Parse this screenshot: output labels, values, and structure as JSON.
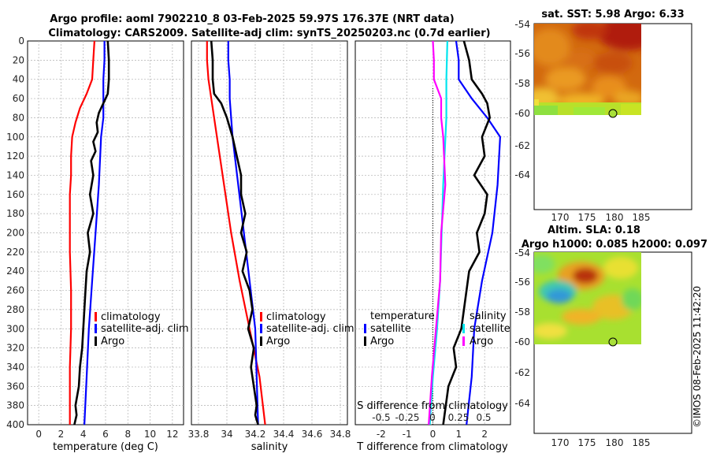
{
  "header": {
    "title_line1": "Argo profile: aoml 7902210_8 03-Feb-2025 59.97S 176.37E (NRT data)",
    "title_line2": "Climatology: CARS2009. Satellite-adj clim: synTS_20250203.nc (0.7d earlier)"
  },
  "depth_axis": {
    "min": 0,
    "max": 400,
    "ticks": [
      "0",
      "20",
      "40",
      "60",
      "80",
      "100",
      "120",
      "140",
      "160",
      "180",
      "200",
      "220",
      "240",
      "260",
      "280",
      "300",
      "320",
      "340",
      "360",
      "380",
      "400"
    ]
  },
  "colors": {
    "climatology": "#ff0000",
    "satellite": "#0000ff",
    "argo": "#000000",
    "temp_diff": "#00e5ee",
    "sal_diff": "#ff00ff",
    "grid": "#b0b0b0"
  },
  "chart_data": [
    {
      "type": "line",
      "id": "temperature",
      "xlabel": "temperature (deg C)",
      "xlim": [
        -1,
        13
      ],
      "xticks": [
        "0",
        "2",
        "4",
        "6",
        "8",
        "10",
        "12"
      ],
      "ylim": [
        400,
        0
      ],
      "legend": [
        "climatology",
        "satellite-adj. clim",
        "Argo"
      ],
      "series": [
        {
          "name": "climatology",
          "depth": [
            0,
            20,
            40,
            55,
            70,
            85,
            100,
            120,
            140,
            160,
            190,
            220,
            260,
            300,
            340,
            380,
            400
          ],
          "values": [
            5.0,
            4.9,
            4.8,
            4.3,
            3.7,
            3.3,
            3.0,
            2.9,
            2.9,
            2.8,
            2.8,
            2.8,
            2.9,
            2.9,
            2.8,
            2.8,
            2.8
          ]
        },
        {
          "name": "satellite-adj. clim",
          "depth": [
            0,
            20,
            40,
            60,
            80,
            100,
            150,
            200,
            250,
            300,
            350,
            400
          ],
          "values": [
            5.9,
            5.9,
            5.8,
            5.8,
            5.8,
            5.6,
            5.4,
            5.1,
            4.8,
            4.5,
            4.3,
            4.1
          ]
        },
        {
          "name": "Argo",
          "depth": [
            0,
            20,
            40,
            55,
            65,
            75,
            85,
            95,
            105,
            115,
            125,
            140,
            160,
            180,
            200,
            220,
            240,
            260,
            280,
            300,
            320,
            340,
            360,
            380,
            390,
            400
          ],
          "values": [
            6.2,
            6.3,
            6.3,
            6.2,
            5.8,
            5.4,
            5.2,
            5.3,
            4.9,
            5.1,
            4.7,
            4.9,
            4.6,
            4.9,
            4.4,
            4.6,
            4.3,
            4.2,
            4.1,
            4.0,
            3.9,
            3.7,
            3.6,
            3.3,
            3.4,
            3.2
          ]
        }
      ]
    },
    {
      "type": "line",
      "id": "salinity",
      "xlabel": "salinity",
      "xlim": [
        33.75,
        34.85
      ],
      "xticks": [
        "33.8",
        "34",
        "34.2",
        "34.4",
        "34.6",
        "34.8"
      ],
      "ylim": [
        400,
        0
      ],
      "legend": [
        "climatology",
        "satellite-adj. clim",
        "Argo"
      ],
      "series": [
        {
          "name": "climatology",
          "depth": [
            0,
            20,
            40,
            50,
            60,
            80,
            100,
            150,
            200,
            250,
            300,
            350,
            400
          ],
          "values": [
            33.86,
            33.86,
            33.87,
            33.88,
            33.89,
            33.91,
            33.93,
            33.98,
            34.03,
            34.09,
            34.16,
            34.23,
            34.27
          ]
        },
        {
          "name": "satellite-adj. clim",
          "depth": [
            0,
            20,
            40,
            60,
            80,
            100,
            150,
            200,
            250,
            300,
            350,
            400
          ],
          "values": [
            34.01,
            34.01,
            34.02,
            34.02,
            34.03,
            34.04,
            34.08,
            34.12,
            34.16,
            34.2,
            34.21,
            34.22
          ]
        },
        {
          "name": "Argo",
          "depth": [
            0,
            20,
            40,
            55,
            65,
            80,
            100,
            120,
            140,
            160,
            180,
            200,
            220,
            240,
            260,
            280,
            300,
            320,
            340,
            360,
            380,
            390,
            400
          ],
          "values": [
            33.89,
            33.9,
            33.9,
            33.91,
            33.96,
            34.0,
            34.04,
            34.07,
            34.1,
            34.1,
            34.13,
            34.1,
            34.14,
            34.11,
            34.16,
            34.18,
            34.15,
            34.19,
            34.17,
            34.19,
            34.21,
            34.2,
            34.22
          ]
        }
      ]
    },
    {
      "type": "line",
      "id": "difference",
      "xlabel": "T difference from climatology",
      "xlim": [
        -3,
        3
      ],
      "xticks": [
        "-2",
        "-1",
        "0",
        "1",
        "2"
      ],
      "secondary_label": "S difference from climatology",
      "secondary_ticks": [
        "-0.5",
        "-0.25",
        "0",
        "0.25",
        "0.5"
      ],
      "ylim": [
        400,
        0
      ],
      "legend_temperature": [
        "temperature",
        "satellite",
        "Argo"
      ],
      "legend_salinity": [
        "salinity",
        "satellite",
        "Argo"
      ],
      "series": [
        {
          "name": "T satellite",
          "depth": [
            0,
            20,
            40,
            60,
            80,
            100,
            150,
            200,
            250,
            300,
            350,
            400
          ],
          "values": [
            0.9,
            1.0,
            1.0,
            1.5,
            2.1,
            2.6,
            2.5,
            2.3,
            1.9,
            1.6,
            1.5,
            1.3
          ]
        },
        {
          "name": "T Argo",
          "depth": [
            0,
            20,
            40,
            55,
            65,
            80,
            100,
            120,
            140,
            160,
            180,
            200,
            220,
            240,
            260,
            280,
            300,
            320,
            340,
            360,
            380,
            400
          ],
          "values": [
            1.2,
            1.4,
            1.5,
            1.9,
            2.1,
            2.2,
            1.9,
            2.0,
            1.6,
            2.1,
            2.0,
            1.7,
            1.8,
            1.4,
            1.3,
            1.2,
            1.1,
            0.8,
            0.9,
            0.6,
            0.5,
            0.4
          ]
        },
        {
          "name": "S satellite",
          "depth": [
            0,
            40,
            80,
            150,
            250,
            300,
            350,
            400
          ],
          "values": [
            0.14,
            0.13,
            0.13,
            0.1,
            0.07,
            0.04,
            0.0,
            -0.03
          ]
        },
        {
          "name": "S Argo",
          "depth": [
            0,
            20,
            40,
            60,
            80,
            100,
            150,
            200,
            250,
            300,
            350,
            400
          ],
          "values": [
            0.0,
            0.01,
            0.01,
            0.08,
            0.08,
            0.1,
            0.12,
            0.08,
            0.07,
            0.03,
            -0.01,
            -0.04
          ]
        }
      ]
    }
  ],
  "map_sst": {
    "title": "sat. SST: 5.98 Argo: 6.33",
    "yticks": [
      "-54",
      "-56",
      "-58",
      "-60",
      "-62",
      "-64"
    ],
    "xticks": [
      "170",
      "175",
      "180",
      "185"
    ]
  },
  "map_sla": {
    "title_line1": "Altim. SLA: 0.18",
    "title_line2": "Argo h1000: 0.085 h2000: 0.097",
    "yticks": [
      "-54",
      "-56",
      "-58",
      "-60",
      "-62",
      "-64"
    ],
    "xticks": [
      "170",
      "175",
      "180",
      "185"
    ]
  },
  "credit": "©IMOS 08-Feb-2025 11:42:20"
}
